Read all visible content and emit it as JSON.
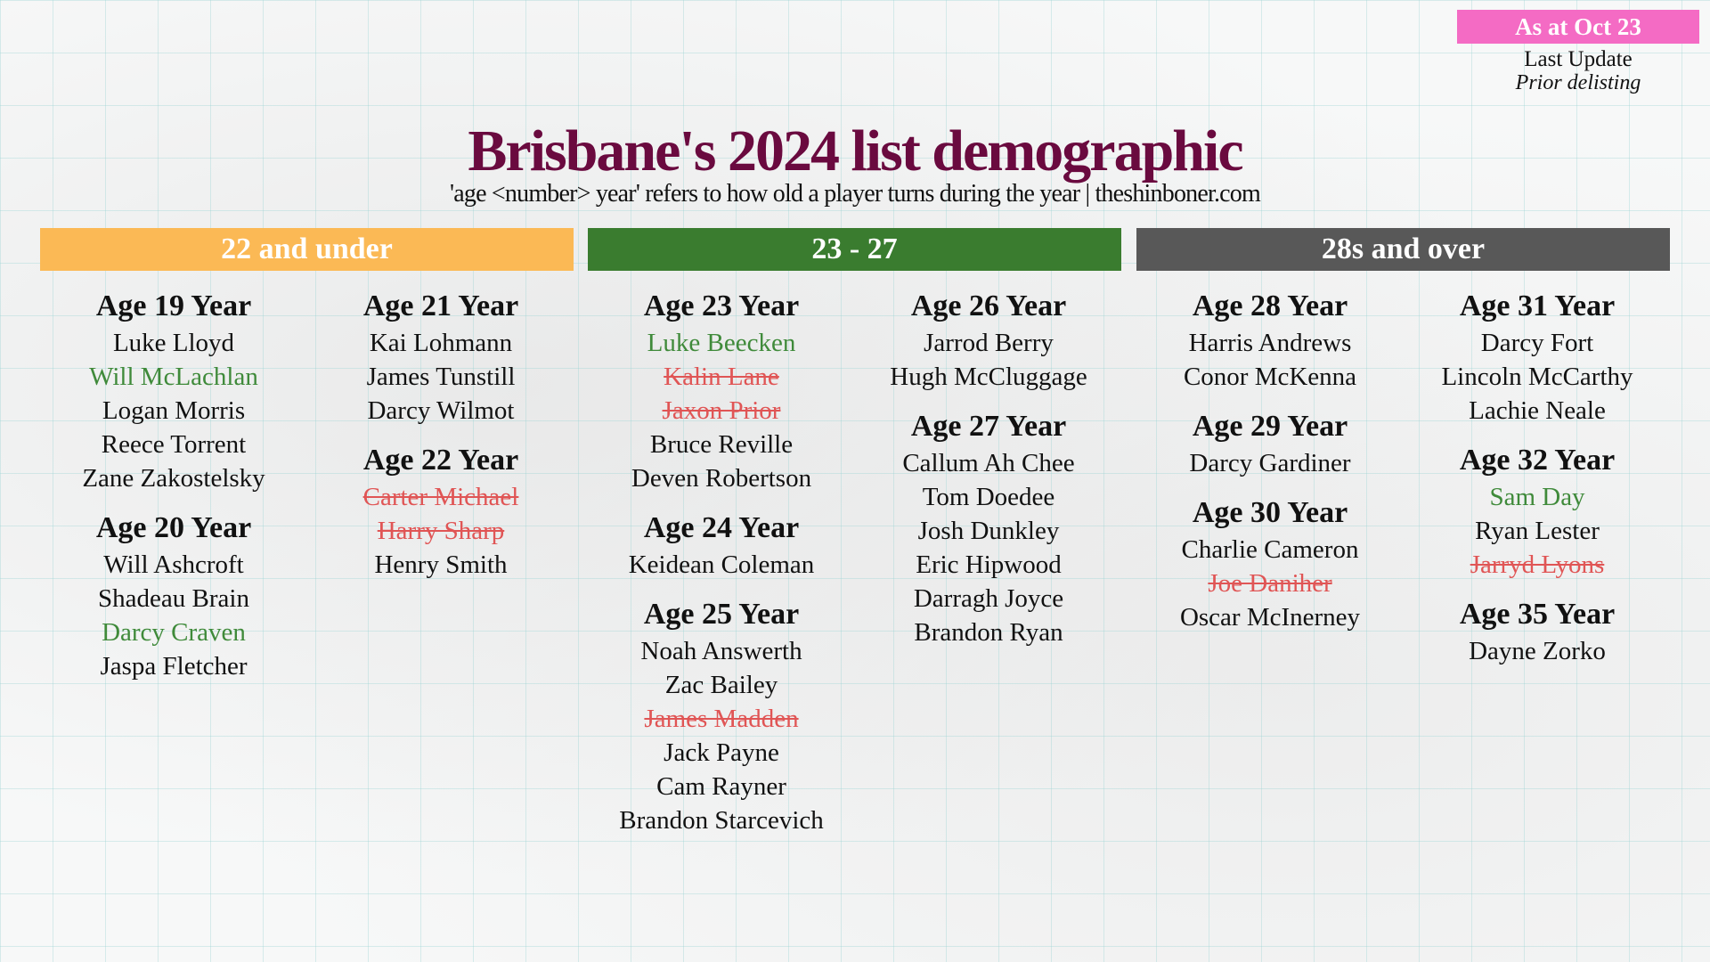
{
  "badge": {
    "label": "As at Oct 23",
    "color": "#f46bc4"
  },
  "legend": {
    "line1": "Last Update",
    "line2": "Prior delisting"
  },
  "title": "Brisbane's 2024 list demographic",
  "subtitle": "'age <number> year' refers to how old a player turns during the year | theshinboner.com",
  "sections": [
    {
      "label": "22 and under",
      "color": "#fbb955"
    },
    {
      "label": "23 - 27",
      "color": "#3a7c2f"
    },
    {
      "label": "28s and over",
      "color": "#585858"
    }
  ],
  "columns": [
    [
      {
        "heading": "Age 19 Year",
        "players": [
          {
            "name": "Luke Lloyd",
            "status": "normal"
          },
          {
            "name": "Will McLachlan",
            "status": "new"
          },
          {
            "name": "Logan Morris",
            "status": "normal"
          },
          {
            "name": "Reece Torrent",
            "status": "normal"
          },
          {
            "name": "Zane Zakostelsky",
            "status": "normal"
          }
        ]
      },
      {
        "heading": "Age 20 Year",
        "players": [
          {
            "name": "Will Ashcroft",
            "status": "normal"
          },
          {
            "name": "Shadeau Brain",
            "status": "normal"
          },
          {
            "name": "Darcy Craven",
            "status": "new"
          },
          {
            "name": "Jaspa Fletcher",
            "status": "normal"
          }
        ]
      }
    ],
    [
      {
        "heading": "Age 21 Year",
        "players": [
          {
            "name": "Kai Lohmann",
            "status": "normal"
          },
          {
            "name": "James Tunstill",
            "status": "normal"
          },
          {
            "name": "Darcy Wilmot",
            "status": "normal"
          }
        ]
      },
      {
        "heading": "Age 22 Year",
        "players": [
          {
            "name": "Carter Michael",
            "status": "delisted"
          },
          {
            "name": "Harry Sharp",
            "status": "delisted"
          },
          {
            "name": "Henry Smith",
            "status": "normal"
          }
        ]
      }
    ],
    [
      {
        "heading": "Age 23 Year",
        "players": [
          {
            "name": "Luke Beecken",
            "status": "new"
          },
          {
            "name": "Kalin Lane",
            "status": "delisted"
          },
          {
            "name": "Jaxon Prior",
            "status": "delisted"
          },
          {
            "name": "Bruce Reville",
            "status": "normal"
          },
          {
            "name": "Deven Robertson",
            "status": "normal"
          }
        ]
      },
      {
        "heading": "Age 24 Year",
        "players": [
          {
            "name": "Keidean Coleman",
            "status": "normal"
          }
        ]
      },
      {
        "heading": "Age 25 Year",
        "players": [
          {
            "name": "Noah Answerth",
            "status": "normal"
          },
          {
            "name": "Zac Bailey",
            "status": "normal"
          },
          {
            "name": "James Madden",
            "status": "delisted"
          },
          {
            "name": "Jack Payne",
            "status": "normal"
          },
          {
            "name": "Cam Rayner",
            "status": "normal"
          },
          {
            "name": "Brandon Starcevich",
            "status": "normal"
          }
        ]
      }
    ],
    [
      {
        "heading": "Age 26 Year",
        "players": [
          {
            "name": "Jarrod Berry",
            "status": "normal"
          },
          {
            "name": "Hugh McCluggage",
            "status": "normal"
          }
        ]
      },
      {
        "heading": "Age 27 Year",
        "players": [
          {
            "name": "Callum Ah Chee",
            "status": "normal"
          },
          {
            "name": "Tom Doedee",
            "status": "normal"
          },
          {
            "name": "Josh Dunkley",
            "status": "normal"
          },
          {
            "name": "Eric Hipwood",
            "status": "normal"
          },
          {
            "name": "Darragh Joyce",
            "status": "normal"
          },
          {
            "name": "Brandon Ryan",
            "status": "normal"
          }
        ]
      }
    ],
    [
      {
        "heading": "Age 28 Year",
        "players": [
          {
            "name": "Harris Andrews",
            "status": "normal"
          },
          {
            "name": "Conor McKenna",
            "status": "normal"
          }
        ]
      },
      {
        "heading": "Age 29 Year",
        "players": [
          {
            "name": "Darcy Gardiner",
            "status": "normal"
          }
        ]
      },
      {
        "heading": "Age 30 Year",
        "players": [
          {
            "name": "Charlie Cameron",
            "status": "normal"
          },
          {
            "name": "Joe Daniher",
            "status": "delisted"
          },
          {
            "name": "Oscar McInerney",
            "status": "normal"
          }
        ]
      }
    ],
    [
      {
        "heading": "Age 31 Year",
        "players": [
          {
            "name": "Darcy Fort",
            "status": "normal"
          },
          {
            "name": "Lincoln McCarthy",
            "status": "normal"
          },
          {
            "name": "Lachie Neale",
            "status": "normal"
          }
        ]
      },
      {
        "heading": "Age 32 Year",
        "players": [
          {
            "name": "Sam Day",
            "status": "new"
          },
          {
            "name": "Ryan Lester",
            "status": "normal"
          },
          {
            "name": "Jarryd Lyons",
            "status": "delisted"
          }
        ]
      },
      {
        "heading": "Age 35 Year",
        "players": [
          {
            "name": "Dayne Zorko",
            "status": "normal"
          }
        ]
      }
    ]
  ]
}
